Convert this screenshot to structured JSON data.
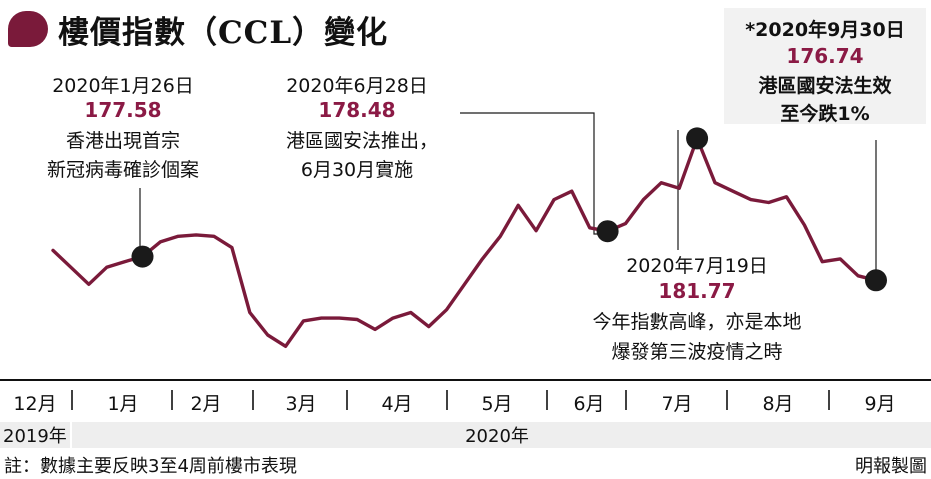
{
  "header": {
    "title": "樓價指數（CCL）變化"
  },
  "callouts": {
    "c1": {
      "date": "2020年1月26日",
      "value": "177.58",
      "line1": "香港出現首宗",
      "line2": "新冠病毒確診個案"
    },
    "c2": {
      "date": "2020年6月28日",
      "value": "178.48",
      "line1": "港區國安法推出，",
      "line2": "6月30月實施"
    },
    "c3": {
      "date": "2020年7月19日",
      "value": "181.77",
      "line1": "今年指數高峰，亦是本地",
      "line2": "爆發第三波疫情之時"
    },
    "c4": {
      "date": "*2020年9月30日",
      "value": "176.74",
      "line1": "港區國安法生效",
      "line2": "至今跌1%"
    }
  },
  "footer": {
    "note": "註：數據主要反映3至4周前樓市表現",
    "credit": "明報製圖"
  },
  "colors": {
    "line": "#7a1a3a",
    "accent": "#8b1a45",
    "marker": "#1a1a1a"
  },
  "chart_data": {
    "type": "line",
    "title": "樓價指數（CCL）變化",
    "xlabel": "",
    "ylabel": "",
    "months": [
      "12月",
      "1月",
      "2月",
      "3月",
      "4月",
      "5月",
      "6月",
      "7月",
      "8月",
      "9月"
    ],
    "years": [
      "2019年",
      "2020年"
    ],
    "ylim": [
      173.1,
      182.6
    ],
    "grid": false,
    "series": [
      {
        "values": [
          177.8,
          177.2,
          176.6,
          177.2,
          177.4,
          177.58,
          178.1,
          178.3,
          178.35,
          178.3,
          177.9,
          175.6,
          174.8,
          174.4,
          175.3,
          175.4,
          175.4,
          175.35,
          175.0,
          175.4,
          175.6,
          175.1,
          175.7,
          176.6,
          177.5,
          178.3,
          179.4,
          178.5,
          179.6,
          179.9,
          178.6,
          178.48,
          178.75,
          179.6,
          180.2,
          180.0,
          181.77,
          180.2,
          179.9,
          179.6,
          179.5,
          179.7,
          178.7,
          177.4,
          177.5,
          176.9,
          176.74
        ]
      }
    ],
    "highlights": [
      {
        "label": "2020年1月26日",
        "value": 177.58
      },
      {
        "label": "2020年6月28日",
        "value": 178.48
      },
      {
        "label": "2020年7月19日",
        "value": 181.77
      },
      {
        "label": "2020年9月30日",
        "value": 176.74
      }
    ]
  }
}
